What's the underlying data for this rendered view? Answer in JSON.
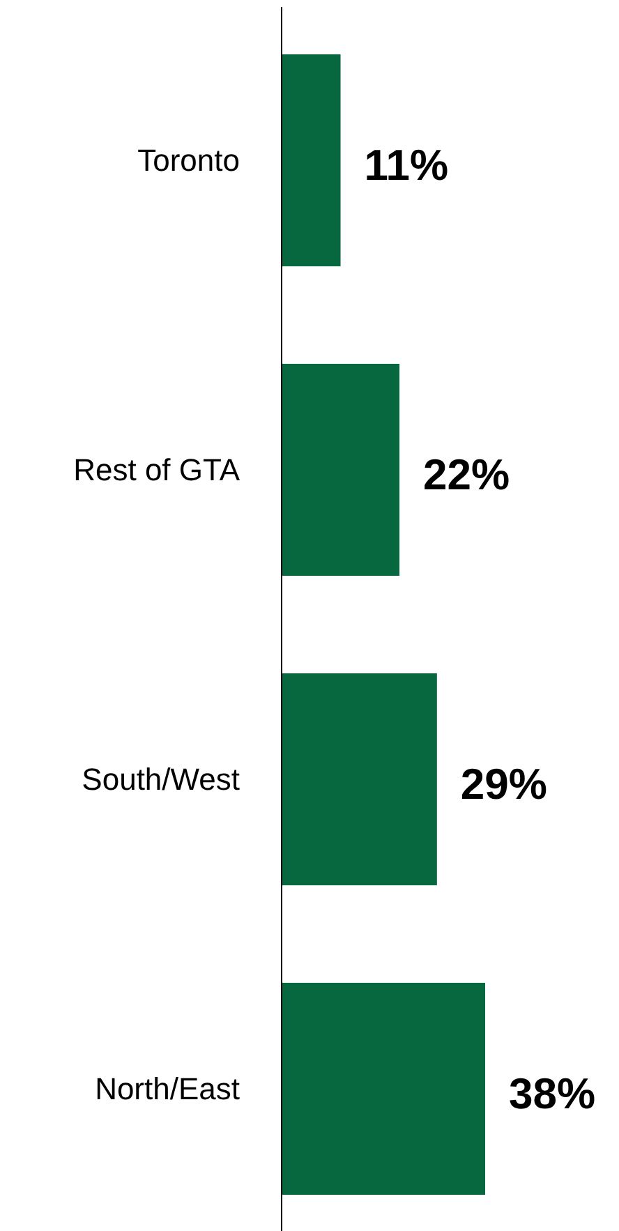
{
  "chart_data": {
    "type": "bar",
    "orientation": "horizontal",
    "categories": [
      "Toronto",
      "Rest of GTA",
      "South/West",
      "North/East"
    ],
    "values": [
      11,
      22,
      29,
      38
    ],
    "color": "#07673f",
    "value_labels": [
      "11%",
      "22%",
      "29%",
      "38%"
    ]
  }
}
